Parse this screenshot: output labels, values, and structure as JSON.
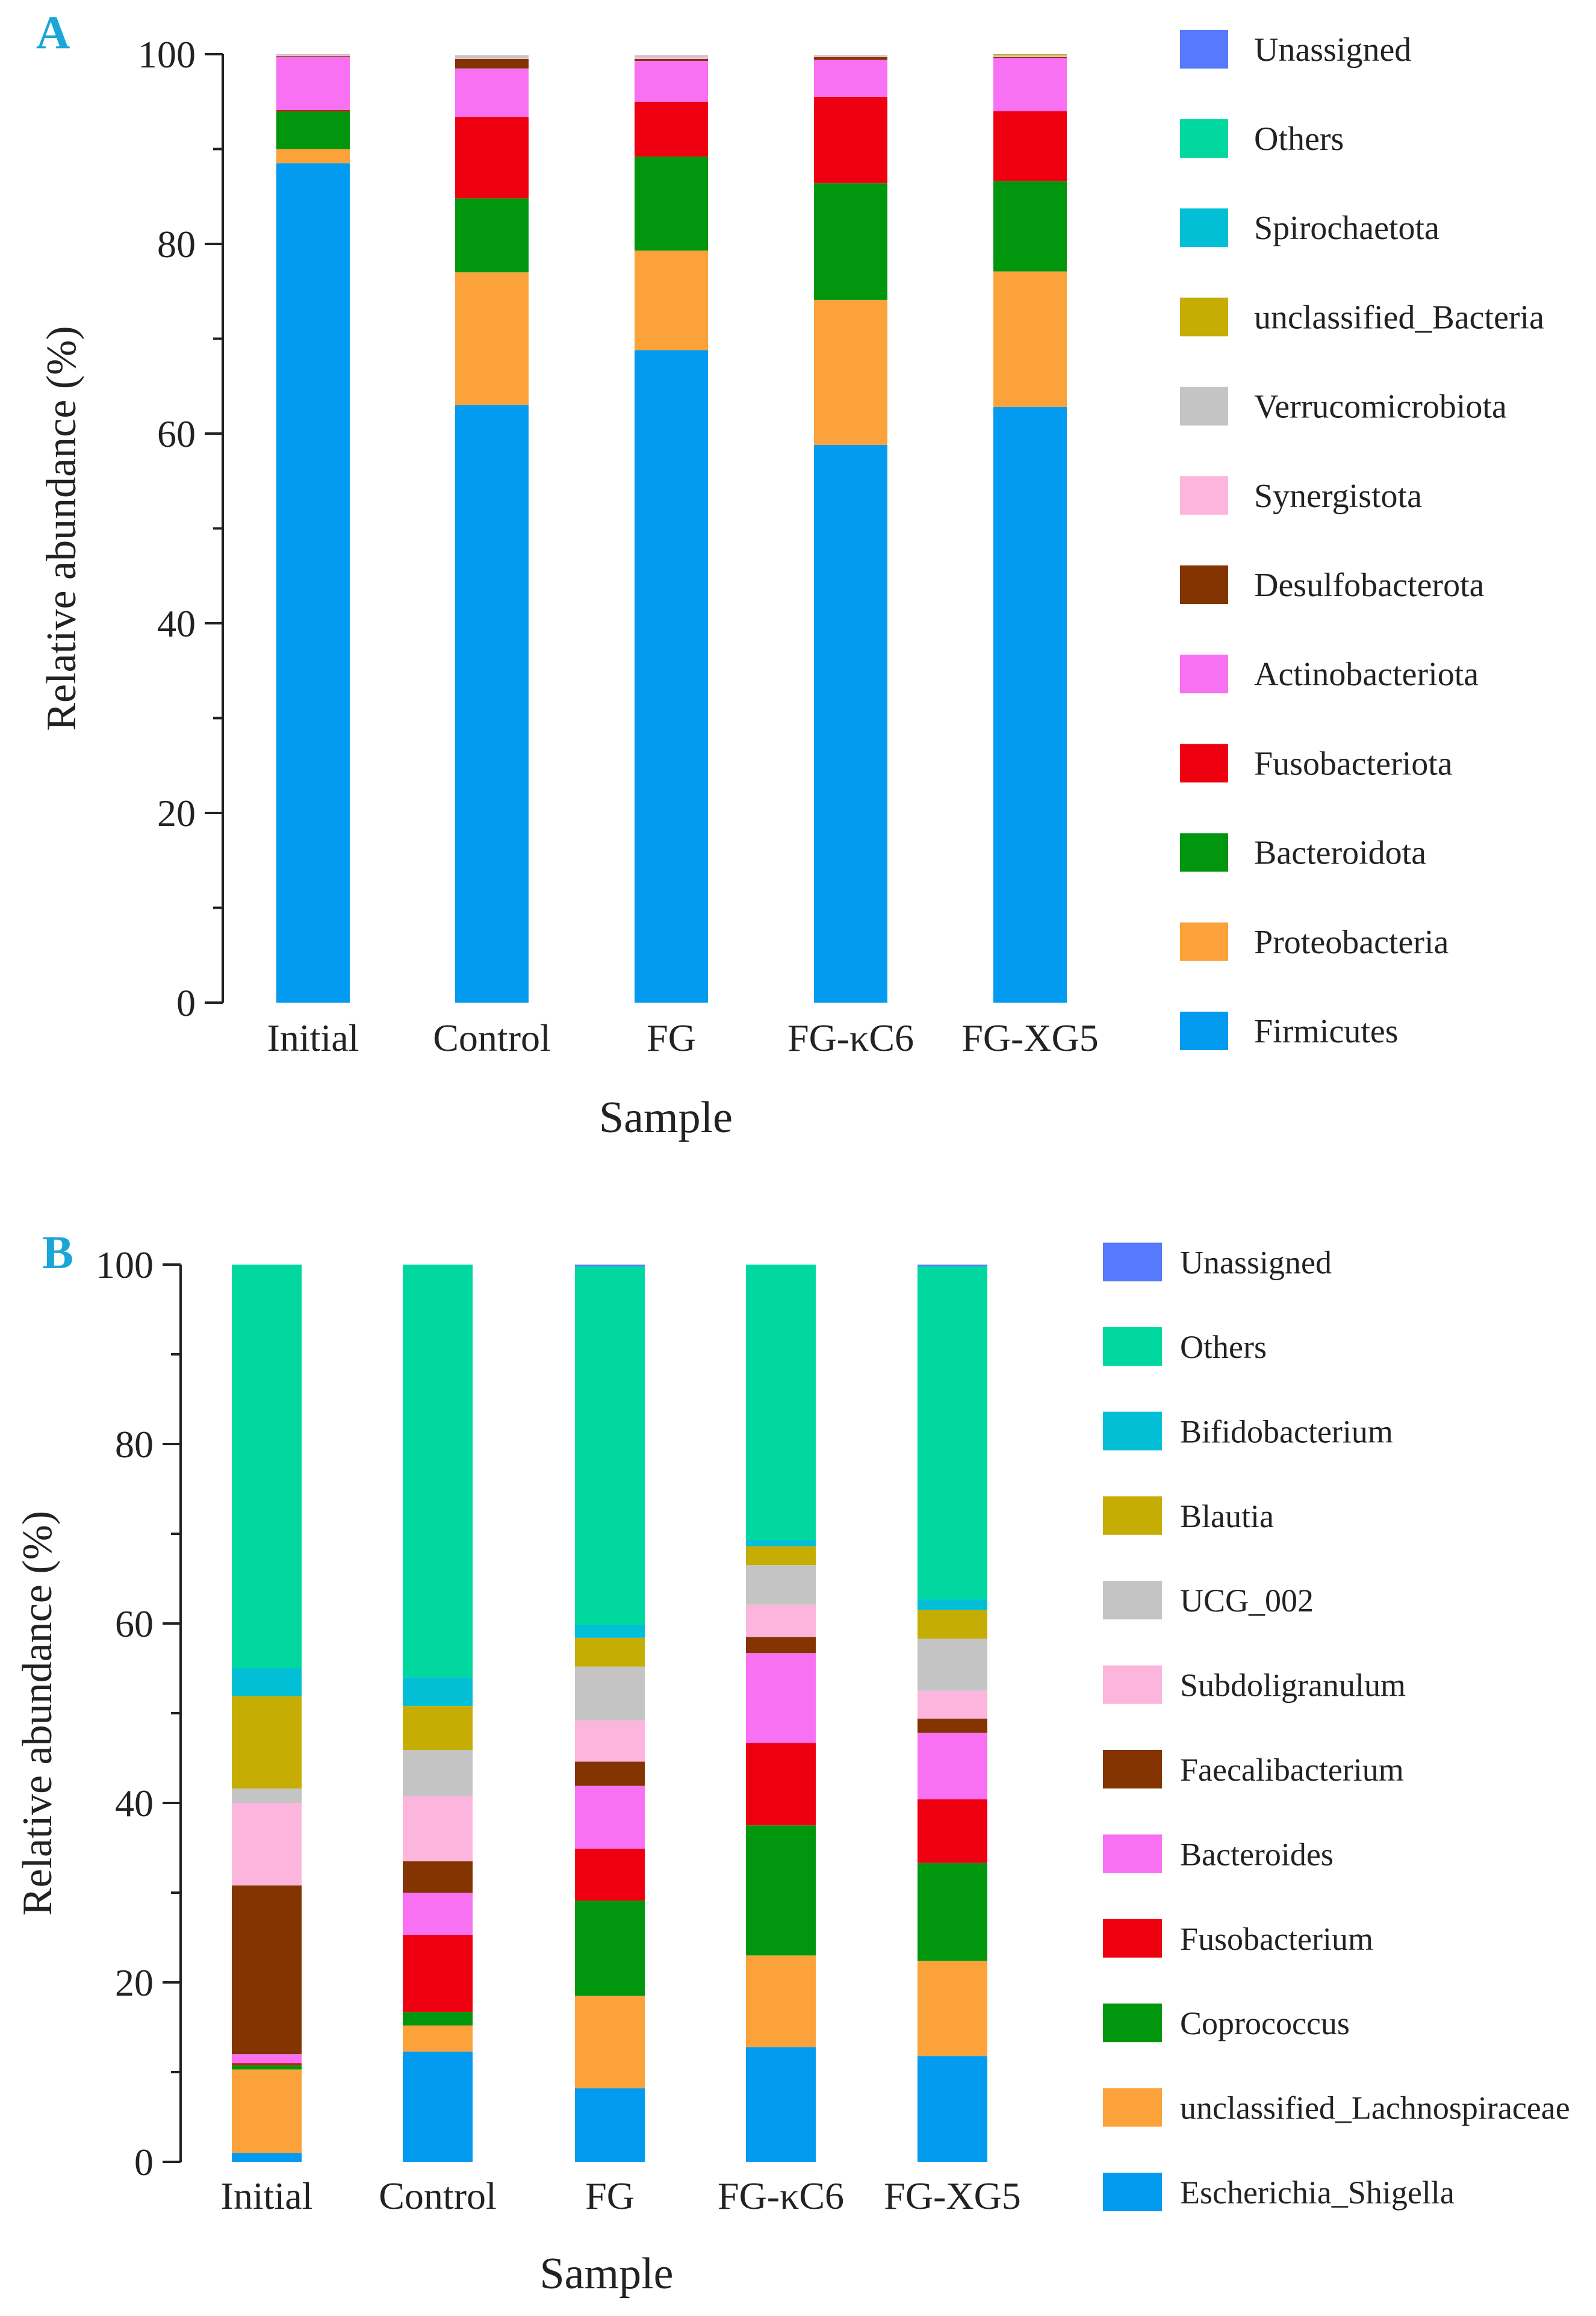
{
  "chart_data": [
    {
      "type": "bar",
      "stacked": true,
      "panel_label": "A",
      "ylabel": "Relative abundance (%)",
      "xlabel": "Sample",
      "ylim": [
        0,
        100
      ],
      "yticks": [
        0,
        20,
        40,
        60,
        80,
        100
      ],
      "categories": [
        "Initial",
        "Control",
        "FG",
        "FG-κC6",
        "FG-XG5"
      ],
      "series": [
        {
          "name": "Firmicutes",
          "color": "#039BF0",
          "values": [
            88.5,
            63.0,
            68.8,
            58.8,
            62.8
          ]
        },
        {
          "name": "Proteobacteria",
          "color": "#FBA23B",
          "values": [
            1.5,
            14.0,
            10.5,
            15.3,
            14.3
          ]
        },
        {
          "name": "Bacteroidota",
          "color": "#00970F",
          "values": [
            4.0,
            7.8,
            9.9,
            12.3,
            9.5
          ]
        },
        {
          "name": "Fusobacteriota",
          "color": "#EE0011",
          "values": [
            0.1,
            8.6,
            5.8,
            9.1,
            7.4
          ]
        },
        {
          "name": "Actinobacteriota",
          "color": "#F871F2",
          "values": [
            5.6,
            5.1,
            4.3,
            3.9,
            5.6
          ]
        },
        {
          "name": "Desulfobacterota",
          "color": "#843401",
          "values": [
            0.1,
            1.0,
            0.2,
            0.3,
            0.1
          ]
        },
        {
          "name": "Synergistota",
          "color": "#FCB6DD",
          "values": [
            0.1,
            0.1,
            0.2,
            0.1,
            0.1
          ]
        },
        {
          "name": "Verrucomicrobiota",
          "color": "#C4C4C4",
          "values": [
            0.1,
            0.3,
            0.2,
            0.1,
            0.1
          ]
        },
        {
          "name": "unclassified_Bacteria",
          "color": "#C5AD04",
          "values": [
            0.0,
            0.0,
            0.0,
            0.0,
            0.1
          ]
        },
        {
          "name": "Spirochaetota",
          "color": "#03BFD6",
          "values": [
            0.0,
            0.0,
            0.0,
            0.0,
            0.0
          ]
        },
        {
          "name": "Others",
          "color": "#00D8A0",
          "values": [
            0.0,
            0.0,
            0.0,
            0.0,
            0.0
          ]
        },
        {
          "name": "Unassigned",
          "color": "#5779FB",
          "values": [
            0.0,
            0.0,
            0.0,
            0.0,
            0.0
          ]
        }
      ]
    },
    {
      "type": "bar",
      "stacked": true,
      "panel_label": "B",
      "ylabel": "Relative abundance (%)",
      "xlabel": "Sample",
      "ylim": [
        0,
        100
      ],
      "yticks": [
        0,
        20,
        40,
        60,
        80,
        100
      ],
      "categories": [
        "Initial",
        "Control",
        "FG",
        "FG-κC6",
        "FG-XG5"
      ],
      "series": [
        {
          "name": "Escherichia_Shigella",
          "color": "#039BF0",
          "values": [
            1.0,
            12.3,
            8.2,
            12.8,
            11.8
          ]
        },
        {
          "name": "unclassified_Lachnospiraceae",
          "color": "#FBA23B",
          "values": [
            9.3,
            2.9,
            10.3,
            10.2,
            10.6
          ]
        },
        {
          "name": "Coprococcus",
          "color": "#00970F",
          "values": [
            0.5,
            1.5,
            10.6,
            14.5,
            10.9
          ]
        },
        {
          "name": "Fusobacterium",
          "color": "#EE0011",
          "values": [
            0.2,
            8.6,
            5.8,
            9.2,
            7.1
          ]
        },
        {
          "name": "Bacteroides",
          "color": "#F871F2",
          "values": [
            1.0,
            4.7,
            7.0,
            10.0,
            7.4
          ]
        },
        {
          "name": "Faecalibacterium",
          "color": "#843401",
          "values": [
            18.8,
            3.5,
            2.7,
            1.8,
            1.6
          ]
        },
        {
          "name": "Subdoligranulum",
          "color": "#FCB6DD",
          "values": [
            9.2,
            7.3,
            4.6,
            3.6,
            3.1
          ]
        },
        {
          "name": "UCG_002",
          "color": "#C4C4C4",
          "values": [
            1.6,
            5.1,
            6.0,
            4.4,
            5.8
          ]
        },
        {
          "name": "Blautia",
          "color": "#C5AD04",
          "values": [
            10.3,
            4.9,
            3.2,
            2.1,
            3.2
          ]
        },
        {
          "name": "Bifidobacterium",
          "color": "#03BFD6",
          "values": [
            3.1,
            3.2,
            1.4,
            0.7,
            1.2
          ]
        },
        {
          "name": "Others",
          "color": "#00D8A0",
          "values": [
            45.0,
            46.0,
            40.0,
            30.7,
            37.1
          ]
        },
        {
          "name": "Unassigned",
          "color": "#5779FB",
          "values": [
            0.0,
            0.0,
            0.2,
            0.0,
            0.2
          ]
        }
      ]
    }
  ]
}
